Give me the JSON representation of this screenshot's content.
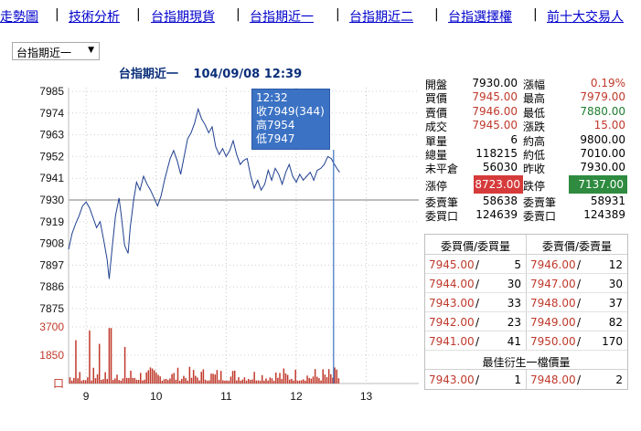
{
  "nav": {
    "items": [
      "走勢圖",
      "技術分析",
      "台指期現貨",
      "台指期近一",
      "台指期近二",
      "台指選擇權",
      "前十大交易人"
    ]
  },
  "select": {
    "value": "台指期近一"
  },
  "chart": {
    "title_name": "台指期近一",
    "title_datetime": "104/09/08 12:39",
    "tooltip": {
      "time": "12:32",
      "close": "收7949(344)",
      "high": "高7954",
      "low": "低7947"
    }
  },
  "chart_data": {
    "type": "line",
    "price_ticks": [
      "7985",
      "7974",
      "7963",
      "7952",
      "7941",
      "7930",
      "7919",
      "7908",
      "7897",
      "7886",
      "7875"
    ],
    "volume_ticks": [
      "3700",
      "1850",
      "口"
    ],
    "x_ticks": [
      "9",
      "10",
      "11",
      "12",
      "13"
    ],
    "ylim": [
      7875,
      7985
    ],
    "reference_price": 7930,
    "xlim": [
      8.75,
      13.75
    ],
    "price_series": [
      [
        8.75,
        7905
      ],
      [
        8.8,
        7913
      ],
      [
        8.85,
        7918
      ],
      [
        8.9,
        7922
      ],
      [
        8.95,
        7927
      ],
      [
        9.0,
        7929
      ],
      [
        9.05,
        7926
      ],
      [
        9.1,
        7921
      ],
      [
        9.15,
        7916
      ],
      [
        9.2,
        7919
      ],
      [
        9.25,
        7910
      ],
      [
        9.3,
        7900
      ],
      [
        9.33,
        7890
      ],
      [
        9.37,
        7905
      ],
      [
        9.42,
        7922
      ],
      [
        9.47,
        7931
      ],
      [
        9.5,
        7923
      ],
      [
        9.55,
        7907
      ],
      [
        9.6,
        7903
      ],
      [
        9.63,
        7916
      ],
      [
        9.68,
        7930
      ],
      [
        9.72,
        7939
      ],
      [
        9.77,
        7935
      ],
      [
        9.82,
        7942
      ],
      [
        9.87,
        7938
      ],
      [
        9.92,
        7935
      ],
      [
        9.97,
        7931
      ],
      [
        10.02,
        7927
      ],
      [
        10.07,
        7932
      ],
      [
        10.12,
        7940
      ],
      [
        10.17,
        7947
      ],
      [
        10.2,
        7951
      ],
      [
        10.25,
        7955
      ],
      [
        10.3,
        7950
      ],
      [
        10.35,
        7943
      ],
      [
        10.4,
        7952
      ],
      [
        10.45,
        7961
      ],
      [
        10.5,
        7964
      ],
      [
        10.55,
        7969
      ],
      [
        10.6,
        7976
      ],
      [
        10.65,
        7971
      ],
      [
        10.7,
        7968
      ],
      [
        10.75,
        7964
      ],
      [
        10.8,
        7967
      ],
      [
        10.85,
        7957
      ],
      [
        10.9,
        7953
      ],
      [
        10.95,
        7956
      ],
      [
        11.0,
        7952
      ],
      [
        11.05,
        7955
      ],
      [
        11.1,
        7960
      ],
      [
        11.15,
        7953
      ],
      [
        11.2,
        7948
      ],
      [
        11.25,
        7950
      ],
      [
        11.3,
        7951
      ],
      [
        11.35,
        7942
      ],
      [
        11.4,
        7936
      ],
      [
        11.45,
        7940
      ],
      [
        11.5,
        7935
      ],
      [
        11.55,
        7938
      ],
      [
        11.6,
        7945
      ],
      [
        11.65,
        7940
      ],
      [
        11.7,
        7946
      ],
      [
        11.75,
        7943
      ],
      [
        11.8,
        7938
      ],
      [
        11.85,
        7944
      ],
      [
        11.9,
        7948
      ],
      [
        11.95,
        7942
      ],
      [
        12.0,
        7939
      ],
      [
        12.05,
        7943
      ],
      [
        12.1,
        7940
      ],
      [
        12.15,
        7942
      ],
      [
        12.2,
        7944
      ],
      [
        12.25,
        7940
      ],
      [
        12.3,
        7945
      ],
      [
        12.35,
        7946
      ],
      [
        12.4,
        7948
      ],
      [
        12.45,
        7952
      ],
      [
        12.5,
        7951
      ],
      [
        12.53,
        7949
      ],
      [
        12.58,
        7946
      ],
      [
        12.62,
        7944
      ]
    ],
    "volume_max": 3700
  },
  "quote": {
    "rows": [
      {
        "l1": "開盤",
        "v1": "7930.00",
        "v1c": "",
        "l2": "漲幅",
        "v2": "0.19%",
        "v2c": "red"
      },
      {
        "l1": "買價",
        "v1": "7945.00",
        "v1c": "red",
        "l2": "最高",
        "v2": "7979.00",
        "v2c": "red"
      },
      {
        "l1": "賣價",
        "v1": "7946.00",
        "v1c": "red",
        "l2": "最低",
        "v2": "7880.00",
        "v2c": "green"
      },
      {
        "l1": "成交",
        "v1": "7945.00",
        "v1c": "red",
        "l2": "漲跌",
        "v2": "15.00",
        "v2c": "red"
      },
      {
        "l1": "單量",
        "v1": "6",
        "v1c": "",
        "l2": "約高",
        "v2": "9800.00",
        "v2c": ""
      },
      {
        "l1": "總量",
        "v1": "118215",
        "v1c": "",
        "l2": "約低",
        "v2": "7010.00",
        "v2c": ""
      },
      {
        "l1": "未平倉",
        "v1": "56030",
        "v1c": "",
        "l2": "昨收",
        "v2": "7930.00",
        "v2c": ""
      }
    ],
    "limit": {
      "up_label": "漲停",
      "up_value": "8723.00",
      "down_label": "跌停",
      "down_value": "7137.00"
    },
    "rows2": [
      {
        "l1": "委賣筆",
        "v1": "58638",
        "l2": "委賣筆",
        "v2": "58931"
      },
      {
        "l1": "委買口",
        "v1": "124639",
        "l2": "委賣口",
        "v2": "124389"
      }
    ]
  },
  "book": {
    "bid_header": "委買價/委買量",
    "ask_header": "委賣價/委賣量",
    "rows": [
      {
        "bid_price": "7945.00",
        "bid_qty": "5",
        "ask_price": "7946.00",
        "ask_qty": "12"
      },
      {
        "bid_price": "7944.00",
        "bid_qty": "30",
        "ask_price": "7947.00",
        "ask_qty": "30"
      },
      {
        "bid_price": "7943.00",
        "bid_qty": "33",
        "ask_price": "7948.00",
        "ask_qty": "37"
      },
      {
        "bid_price": "7942.00",
        "bid_qty": "23",
        "ask_price": "7949.00",
        "ask_qty": "82"
      },
      {
        "bid_price": "7941.00",
        "bid_qty": "41",
        "ask_price": "7950.00",
        "ask_qty": "170"
      }
    ],
    "derived_title": "最佳衍生一檔價量",
    "derived": {
      "bid_price": "7943.00",
      "bid_qty": "1",
      "ask_price": "7948.00",
      "ask_qty": "2"
    }
  },
  "colors": {
    "line": "#1f3f8f",
    "reference": "#bdbdbd",
    "volume": "#c0392b",
    "tooltip": "#3b72c4",
    "cursor": "#3b72c4"
  }
}
